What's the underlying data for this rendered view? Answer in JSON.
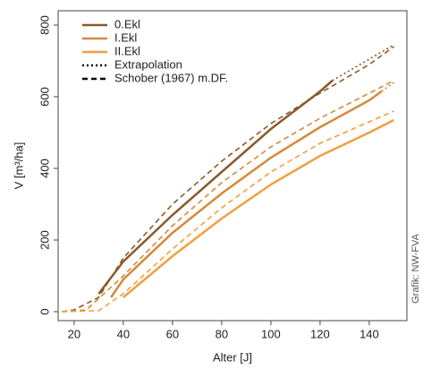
{
  "chart_data": {
    "type": "line",
    "x_label": "Alter [J]",
    "y_label": "V [m³/ha]",
    "credit": "Grafik: NW-FVA",
    "xlim": [
      13.5,
      155.3
    ],
    "ylim": [
      -25,
      840
    ],
    "xticks": [
      20,
      40,
      60,
      80,
      100,
      120,
      140
    ],
    "yticks": [
      0,
      200,
      400,
      600,
      800
    ],
    "legend_position": "upper left",
    "legend": [
      {
        "label": "0.Ekl",
        "color": "#8b5a2b",
        "dash": "solid"
      },
      {
        "label": "I.Ekl",
        "color": "#d4893a",
        "dash": "solid"
      },
      {
        "label": "II.Ekl",
        "color": "#f0a040",
        "dash": "solid"
      },
      {
        "label": "Extrapolation",
        "color": "#000000",
        "dash": "dotted"
      },
      {
        "label": "Schober (1967) m.DF.",
        "color": "#000000",
        "dash": "dashed"
      }
    ],
    "series": [
      {
        "color": "#8b5a2b",
        "dash": "solid",
        "x": [
          30,
          40,
          60,
          80,
          100,
          120,
          125
        ],
        "values": [
          50,
          140,
          270,
          390,
          510,
          615,
          645
        ]
      },
      {
        "color": "#d4893a",
        "dash": "solid",
        "x": [
          35,
          40,
          60,
          80,
          100,
          120,
          140,
          145
        ],
        "values": [
          40,
          90,
          220,
          330,
          430,
          515,
          590,
          615
        ]
      },
      {
        "color": "#f0a040",
        "dash": "solid",
        "x": [
          40,
          60,
          80,
          100,
          120,
          140,
          150
        ],
        "values": [
          40,
          155,
          260,
          355,
          435,
          500,
          535
        ]
      },
      {
        "color": "#8b5a2b",
        "dash": "dotted",
        "x": [
          125,
          130,
          140,
          150
        ],
        "values": [
          645,
          665,
          705,
          745
        ]
      },
      {
        "color": "#d4893a",
        "dash": "dotted",
        "x": [
          145,
          150
        ],
        "values": [
          615,
          640
        ]
      },
      {
        "color": "#8b5a2b",
        "dash": "dashed",
        "x": [
          15,
          20,
          30,
          40,
          60,
          80,
          100,
          120,
          140,
          150
        ],
        "values": [
          0,
          5,
          40,
          150,
          300,
          420,
          525,
          610,
          690,
          740
        ]
      },
      {
        "color": "#d4893a",
        "dash": "dashed",
        "x": [
          15,
          25,
          40,
          60,
          80,
          100,
          120,
          140,
          150
        ],
        "values": [
          0,
          5,
          100,
          240,
          360,
          460,
          540,
          610,
          645
        ]
      },
      {
        "color": "#f0a040",
        "dash": "dashed",
        "x": [
          15,
          30,
          40,
          60,
          80,
          100,
          120,
          140,
          150
        ],
        "values": [
          0,
          3,
          50,
          175,
          290,
          390,
          470,
          530,
          560
        ]
      }
    ]
  }
}
